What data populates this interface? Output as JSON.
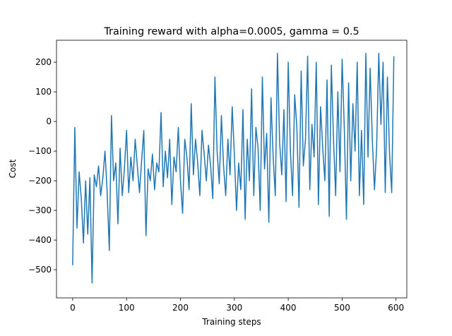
{
  "chart_data": {
    "type": "line",
    "title": "Training reward with alpha=0.0005, gamma = 0.5",
    "x_label": "Training steps",
    "y_label": "Cost",
    "color": "#1f77b4",
    "xlim": [
      -30,
      620
    ],
    "ylim": [
      -595,
      274
    ],
    "xticks": [
      0,
      100,
      200,
      300,
      400,
      500,
      600
    ],
    "yticks": [
      {
        "value": -500,
        "label": "−500"
      },
      {
        "value": -400,
        "label": "−400"
      },
      {
        "value": -300,
        "label": "−300"
      },
      {
        "value": -200,
        "label": "−200"
      },
      {
        "value": -100,
        "label": "−100"
      },
      0,
      100,
      200
    ],
    "x": [
      0,
      4,
      8,
      12,
      16,
      20,
      24,
      28,
      32,
      36,
      40,
      44,
      48,
      52,
      56,
      60,
      64,
      68,
      72,
      76,
      80,
      84,
      88,
      92,
      96,
      100,
      104,
      108,
      112,
      116,
      120,
      124,
      128,
      132,
      136,
      140,
      144,
      148,
      152,
      156,
      160,
      164,
      168,
      172,
      176,
      180,
      184,
      188,
      192,
      196,
      200,
      204,
      208,
      212,
      216,
      220,
      224,
      228,
      232,
      236,
      240,
      244,
      248,
      252,
      256,
      260,
      264,
      268,
      272,
      276,
      280,
      284,
      288,
      292,
      296,
      300,
      304,
      308,
      312,
      316,
      320,
      324,
      328,
      332,
      336,
      340,
      344,
      348,
      352,
      356,
      360,
      364,
      368,
      372,
      376,
      380,
      384,
      388,
      392,
      396,
      400,
      404,
      408,
      412,
      416,
      420,
      424,
      428,
      432,
      436,
      440,
      444,
      448,
      452,
      456,
      460,
      464,
      468,
      472,
      476,
      480,
      484,
      488,
      492,
      496,
      500,
      504,
      508,
      512,
      516,
      520,
      524,
      528,
      532,
      536,
      540,
      544,
      548,
      552,
      556,
      560,
      564,
      568,
      572,
      576,
      580,
      584,
      588,
      592,
      596
    ],
    "values": [
      -485,
      -20,
      -360,
      -170,
      -260,
      -410,
      -200,
      -380,
      -190,
      -545,
      -180,
      -220,
      -150,
      -250,
      -190,
      -100,
      -240,
      -435,
      20,
      -200,
      -140,
      -345,
      -90,
      -250,
      -160,
      -30,
      -240,
      -120,
      -200,
      -60,
      -150,
      -240,
      -130,
      -30,
      -385,
      -160,
      -200,
      -110,
      -230,
      -140,
      -170,
      30,
      -220,
      -100,
      -190,
      -60,
      -280,
      -120,
      -170,
      -20,
      -200,
      -310,
      -60,
      -120,
      -230,
      60,
      -180,
      -60,
      -140,
      -250,
      -30,
      -110,
      -200,
      -80,
      -150,
      -260,
      150,
      -100,
      -210,
      20,
      -150,
      -250,
      -60,
      -180,
      50,
      -110,
      -300,
      -140,
      -230,
      40,
      -330,
      -60,
      -200,
      110,
      -250,
      -20,
      -90,
      -300,
      150,
      -160,
      -40,
      -340,
      80,
      -120,
      -250,
      230,
      -70,
      -180,
      40,
      -270,
      200,
      -100,
      -250,
      90,
      -20,
      -290,
      170,
      -150,
      -60,
      220,
      -230,
      -10,
      -120,
      200,
      -280,
      50,
      -90,
      -200,
      140,
      -320,
      190,
      -60,
      -250,
      100,
      -170,
      210,
      -20,
      -330,
      130,
      -200,
      60,
      -100,
      200,
      -250,
      -30,
      -280,
      230,
      -120,
      180,
      -60,
      -230,
      -90,
      230,
      -10,
      200,
      -240,
      150,
      -110,
      -240,
      220
    ]
  }
}
